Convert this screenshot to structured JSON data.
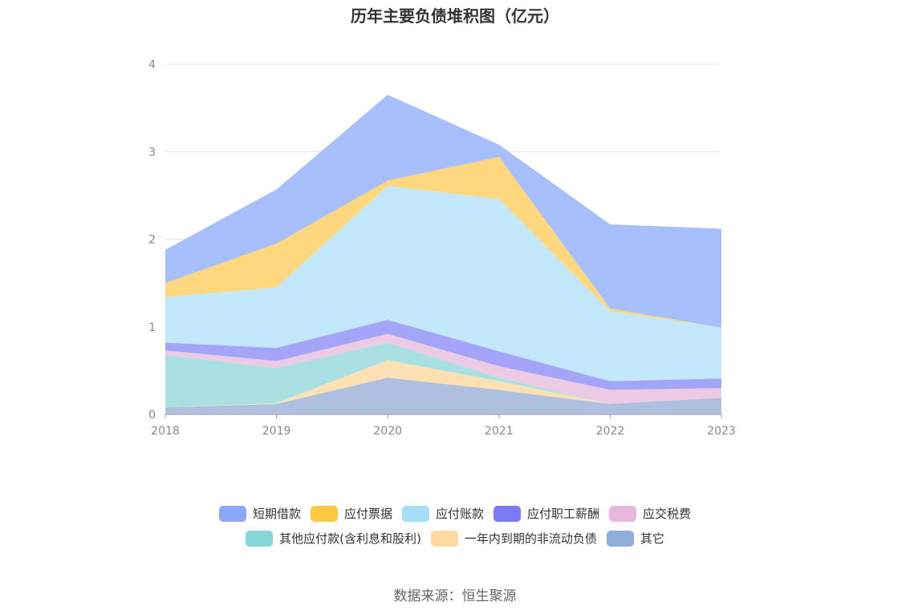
{
  "chart_data": {
    "type": "area",
    "stacked": true,
    "title": "历年主要负债堆积图（亿元）",
    "xlabel": "",
    "ylabel": "",
    "x": [
      "2018",
      "2019",
      "2020",
      "2021",
      "2022",
      "2023"
    ],
    "ylim": [
      0,
      4
    ],
    "yticks": [
      0,
      1,
      2,
      3,
      4
    ],
    "grid": true,
    "legend_position": "bottom",
    "series": [
      {
        "name": "其它",
        "color": "#aebfe0",
        "values": [
          0.08,
          0.12,
          0.42,
          0.28,
          0.12,
          0.19
        ]
      },
      {
        "name": "一年内到期的非流动负债",
        "color": "#fde1b3",
        "values": [
          0.0,
          0.01,
          0.2,
          0.1,
          0.0,
          0.0
        ]
      },
      {
        "name": "其他应付款(含利息和股利)",
        "color": "#a9e1e2",
        "values": [
          0.6,
          0.4,
          0.2,
          0.04,
          0.0,
          0.0
        ]
      },
      {
        "name": "应交税费",
        "color": "#eccae4",
        "values": [
          0.05,
          0.08,
          0.1,
          0.13,
          0.16,
          0.11
        ]
      },
      {
        "name": "应付职工薪酬",
        "color": "#a4a4f9",
        "values": [
          0.09,
          0.15,
          0.16,
          0.17,
          0.1,
          0.11
        ]
      },
      {
        "name": "应付账款",
        "color": "#c3e8fb",
        "values": [
          0.52,
          0.69,
          1.53,
          1.74,
          0.8,
          0.58
        ]
      },
      {
        "name": "应付票据",
        "color": "#fed77f",
        "values": [
          0.16,
          0.5,
          0.06,
          0.48,
          0.03,
          0.0
        ]
      },
      {
        "name": "短期借款",
        "color": "#a8bffe",
        "values": [
          0.38,
          0.62,
          0.98,
          0.14,
          0.96,
          1.13
        ]
      }
    ]
  },
  "legend": {
    "rows": [
      [
        {
          "label": "短期借款",
          "color": "#8ca8fb"
        },
        {
          "label": "应付票据",
          "color": "#fdc844"
        },
        {
          "label": "应付账款",
          "color": "#a6dff9"
        },
        {
          "label": "应付职工薪酬",
          "color": "#7b7bf5"
        },
        {
          "label": "应交税费",
          "color": "#e7b8db"
        }
      ],
      [
        {
          "label": "其他应付款(含利息和股利)",
          "color": "#85d6d6"
        },
        {
          "label": "一年内到期的非流动负债",
          "color": "#fdd8a0"
        },
        {
          "label": "其它",
          "color": "#8faedc"
        }
      ]
    ]
  },
  "source_note": "数据来源：恒生聚源"
}
